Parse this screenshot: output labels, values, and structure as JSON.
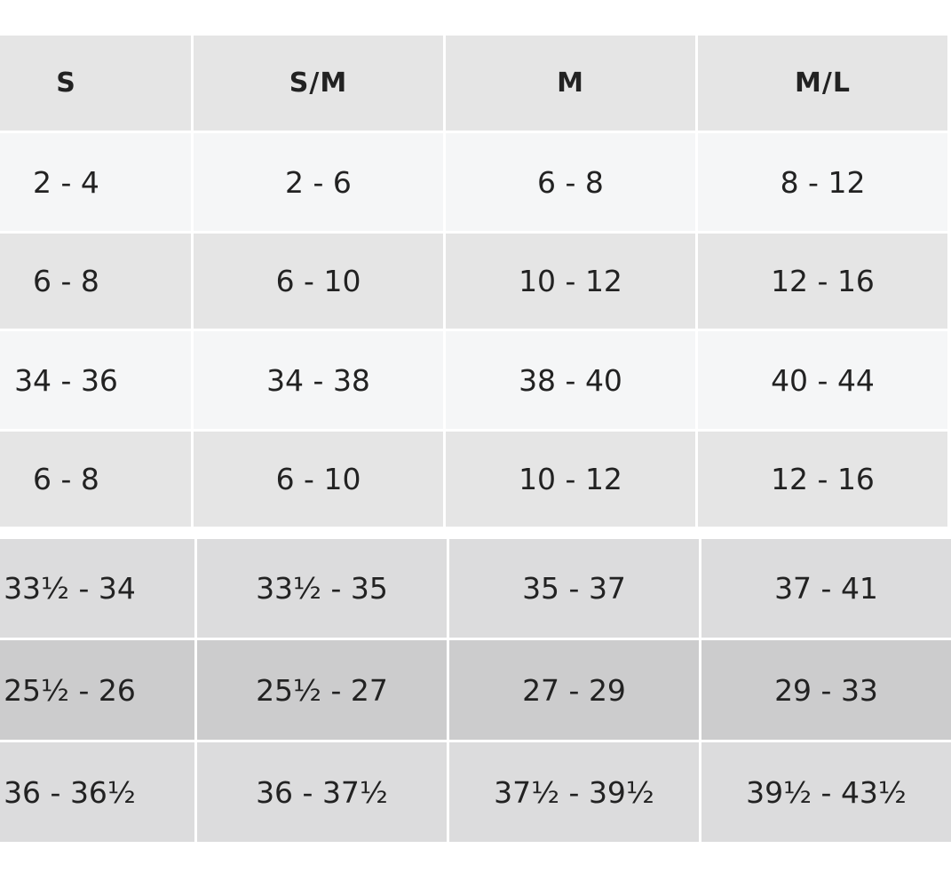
{
  "table": {
    "header": [
      "S",
      "S/M",
      "M",
      "M/L"
    ],
    "rows": [
      [
        "2 - 4",
        "2 - 6",
        "6 - 8",
        "8 - 12"
      ],
      [
        "6 - 8",
        "6 - 10",
        "10 - 12",
        "12 - 16"
      ],
      [
        "34 - 36",
        "34 - 38",
        "38 - 40",
        "40 - 44"
      ],
      [
        "6 - 8",
        "6 - 10",
        "10 - 12",
        "12 - 16"
      ],
      [
        "33½ - 34",
        "33½ - 35",
        "35 - 37",
        "37 - 41"
      ],
      [
        "25½ - 26",
        "25½ - 27",
        "27 - 29",
        "29 - 33"
      ],
      [
        "36 - 36½",
        "36 - 37½",
        "37½ - 39½",
        "39½ - 43½"
      ]
    ]
  }
}
